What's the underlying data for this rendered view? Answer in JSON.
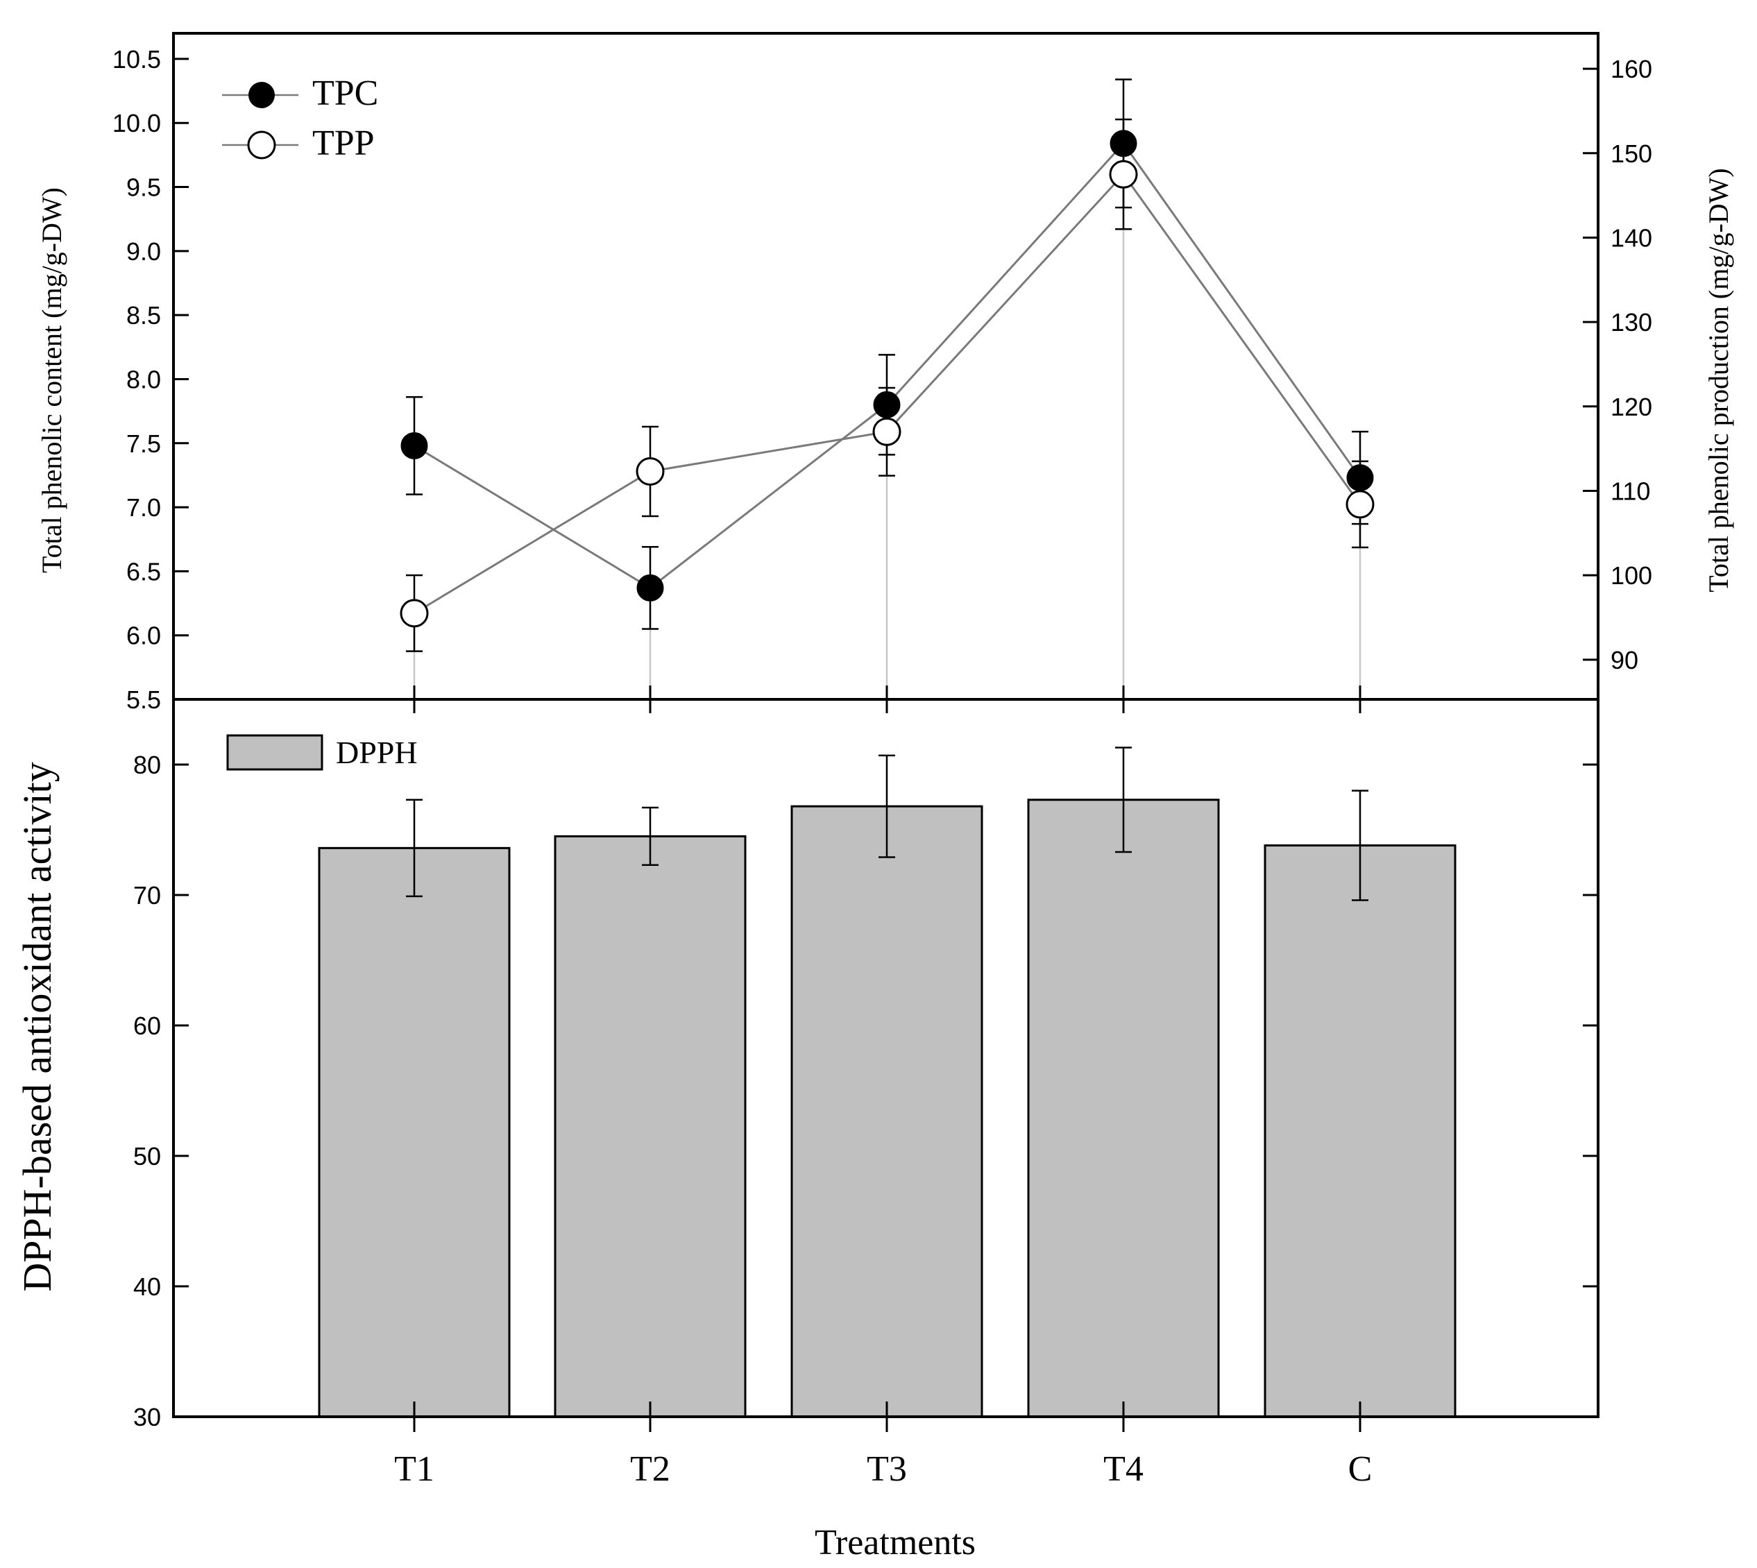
{
  "chart_data": [
    {
      "type": "line",
      "panel": "top",
      "categories": [
        "T1",
        "T2",
        "T3",
        "T4",
        "C"
      ],
      "series": [
        {
          "name": "TPC",
          "axis": "left",
          "marker": "filled-circle",
          "values": [
            7.48,
            6.37,
            7.8,
            9.84,
            7.23
          ],
          "errors": [
            0.38,
            0.32,
            0.39,
            0.5,
            0.36
          ]
        },
        {
          "name": "TPP",
          "axis": "right",
          "marker": "open-circle",
          "values": [
            95.5,
            112.3,
            117.0,
            147.5,
            108.4
          ],
          "errors": [
            4.5,
            5.3,
            5.2,
            6.5,
            5.1
          ]
        }
      ],
      "y_left": {
        "label": "Total phenolic content (mg/g-DW)",
        "ylim": [
          5.5,
          10.7
        ],
        "ticks": [
          "5.5",
          "6.0",
          "6.5",
          "7.0",
          "7.5",
          "8.0",
          "8.5",
          "9.0",
          "9.5",
          "10.0",
          "10.5"
        ]
      },
      "y_right": {
        "label": "Total phenolic production (mg/g-DW)",
        "ylim": [
          85.3,
          164.2
        ],
        "ticks": [
          "90",
          "100",
          "110",
          "120",
          "130",
          "140",
          "150",
          "160"
        ]
      },
      "legend": "top-left"
    },
    {
      "type": "bar",
      "panel": "bottom",
      "categories": [
        "T1",
        "T2",
        "T3",
        "T4",
        "C"
      ],
      "series": [
        {
          "name": "DPPH",
          "values": [
            73.6,
            74.5,
            76.8,
            77.3,
            73.8
          ],
          "errors": [
            3.7,
            2.2,
            3.9,
            4.0,
            4.2
          ]
        }
      ],
      "xlabel": "Treatments",
      "ylabel": "DPPH-based antioxidant activity",
      "ylim": [
        30,
        85
      ],
      "yticks": [
        "30",
        "40",
        "50",
        "60",
        "70",
        "80"
      ],
      "legend": "top-left"
    }
  ],
  "colors": {
    "bar_fill": "#c0c0c0",
    "axis": "#000000",
    "series_line": "#7a7a7a",
    "drop_line": "#c8c8c8"
  }
}
